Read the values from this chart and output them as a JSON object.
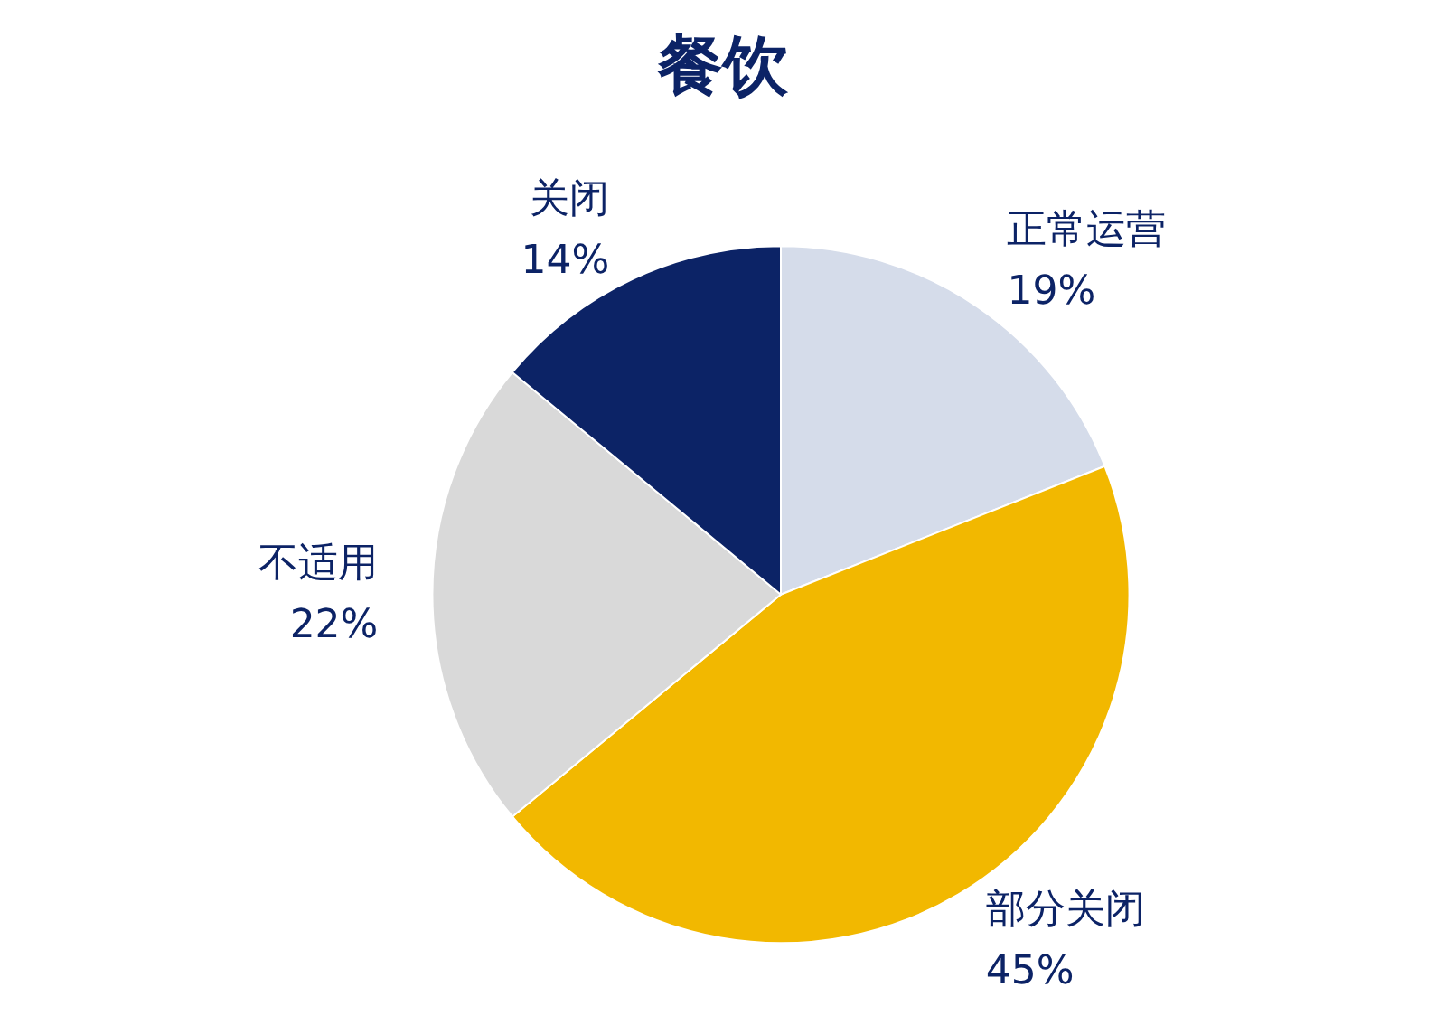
{
  "chart_data": {
    "type": "pie",
    "title": "餐饮",
    "categories": [
      "正常运营",
      "部分关闭",
      "不适用",
      "关闭"
    ],
    "values": [
      19,
      45,
      22,
      14
    ],
    "value_labels": [
      "19%",
      "45%",
      "22%",
      "14%"
    ],
    "colors": [
      "#d5dcea",
      "#f2b800",
      "#d9d9d9",
      "#0c2366"
    ]
  }
}
